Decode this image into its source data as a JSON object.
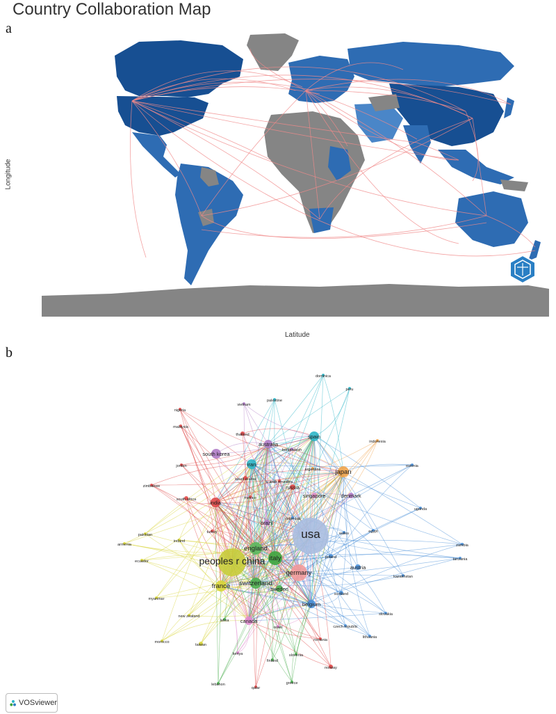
{
  "title": "Country Collaboration Map",
  "panels": {
    "a": "a",
    "b": "b"
  },
  "axes": {
    "x": "Longitude",
    "y": "Latitude"
  },
  "colors": {
    "ocean": "#ffffff",
    "land_nodata": "#858585",
    "land_low": "#4a86c8",
    "land_mid": "#2e6cb3",
    "land_high": "#174f92",
    "link": "#f08a8a"
  },
  "logo": {
    "text": "VOSviewer"
  },
  "nodes": [
    {
      "label": "usa",
      "color": "#a9bde0",
      "size": 26
    },
    {
      "label": "peoples r china",
      "color": "#c8cc3a",
      "size": 20
    },
    {
      "label": "germany",
      "color": "#f29a9a",
      "size": 12
    },
    {
      "label": "italy",
      "color": "#3fa63f",
      "size": 10
    },
    {
      "label": "england",
      "color": "#5cb85c",
      "size": 9
    },
    {
      "label": "switzerland",
      "color": "#4caf50",
      "size": 8
    },
    {
      "label": "france",
      "color": "#d8d63a",
      "size": 8
    },
    {
      "label": "japan",
      "color": "#f0a34a",
      "size": 8
    },
    {
      "label": "spain",
      "color": "#2db6c8",
      "size": 7
    },
    {
      "label": "india",
      "color": "#e04848",
      "size": 7
    },
    {
      "label": "south korea",
      "color": "#b07cc6",
      "size": 7
    },
    {
      "label": "iran",
      "color": "#2db6c8",
      "size": 7
    },
    {
      "label": "australia",
      "color": "#b07cc6",
      "size": 6
    },
    {
      "label": "canada",
      "color": "#e08cd0",
      "size": 6
    },
    {
      "label": "belgium",
      "color": "#4a90d9",
      "size": 6
    },
    {
      "label": "sweden",
      "color": "#4caf50",
      "size": 5
    },
    {
      "label": "brazil",
      "color": "#b07cc6",
      "size": 4
    },
    {
      "label": "singapore",
      "color": "#e090c8",
      "size": 4
    },
    {
      "label": "denmark",
      "color": "#b07cc6",
      "size": 4
    },
    {
      "label": "austria",
      "color": "#4a90d9",
      "size": 4
    },
    {
      "label": "poland",
      "color": "#4a90d9",
      "size": 3
    },
    {
      "label": "russia",
      "color": "#e04848",
      "size": 4
    },
    {
      "label": "thailand",
      "color": "#e04848",
      "size": 3
    },
    {
      "label": "saudi arabia",
      "color": "#e04848",
      "size": 3
    },
    {
      "label": "south africa",
      "color": "#e04848",
      "size": 3
    },
    {
      "label": "taiwan",
      "color": "#d8d63a",
      "size": 3
    },
    {
      "label": "scotland",
      "color": "#4a90d9",
      "size": 3
    },
    {
      "label": "norway",
      "color": "#e04848",
      "size": 3
    },
    {
      "label": "argentina",
      "color": "#f0a34a",
      "size": 2
    },
    {
      "label": "bangladesh",
      "color": "#b07cc6",
      "size": 2
    },
    {
      "label": "u arab emirates",
      "color": "#e04848",
      "size": 2
    },
    {
      "label": "mexico",
      "color": "#e04848",
      "size": 2
    },
    {
      "label": "colombia",
      "color": "#4a90d9",
      "size": 2
    },
    {
      "label": "wales",
      "color": "#4a90d9",
      "size": 2
    },
    {
      "label": "egypt",
      "color": "#4a90d9",
      "size": 2
    },
    {
      "label": "turkey",
      "color": "#e04848",
      "size": 2
    },
    {
      "label": "ireland",
      "color": "#d8d63a",
      "size": 2
    },
    {
      "label": "pakistan",
      "color": "#d8d63a",
      "size": 2
    },
    {
      "label": "armenia",
      "color": "#d8d63a",
      "size": 2
    },
    {
      "label": "ecuador",
      "color": "#d8d63a",
      "size": 2
    },
    {
      "label": "myanmar",
      "color": "#d8d63a",
      "size": 2
    },
    {
      "label": "new zealand",
      "color": "#d8d63a",
      "size": 2
    },
    {
      "label": "morocco",
      "color": "#d8d63a",
      "size": 2
    },
    {
      "label": "latvia",
      "color": "#4caf50",
      "size": 2
    },
    {
      "label": "israel",
      "color": "#e08cd0",
      "size": 2
    },
    {
      "label": "kenya",
      "color": "#e08cd0",
      "size": 2
    },
    {
      "label": "finland",
      "color": "#4caf50",
      "size": 2
    },
    {
      "label": "slovenia",
      "color": "#4caf50",
      "size": 2
    },
    {
      "label": "romania",
      "color": "#e04848",
      "size": 2
    },
    {
      "label": "czech republic",
      "color": "#4a90d9",
      "size": 2
    },
    {
      "label": "lithuania",
      "color": "#4a90d9",
      "size": 2
    },
    {
      "label": "slovakia",
      "color": "#4a90d9",
      "size": 2
    },
    {
      "label": "kazakhstan",
      "color": "#4a90d9",
      "size": 2
    },
    {
      "label": "zambia",
      "color": "#4a90d9",
      "size": 2
    },
    {
      "label": "tanzania",
      "color": "#4a90d9",
      "size": 2
    },
    {
      "label": "uganda",
      "color": "#4a90d9",
      "size": 2
    },
    {
      "label": "estonia",
      "color": "#4a90d9",
      "size": 2
    },
    {
      "label": "indonesia",
      "color": "#f0a34a",
      "size": 2
    },
    {
      "label": "peru",
      "color": "#2db6c8",
      "size": 2
    },
    {
      "label": "dominica",
      "color": "#2db6c8",
      "size": 2
    },
    {
      "label": "palestine",
      "color": "#2db6c8",
      "size": 2
    },
    {
      "label": "vietnam",
      "color": "#b07cc6",
      "size": 2
    },
    {
      "label": "nigeria",
      "color": "#e04848",
      "size": 2
    },
    {
      "label": "malaysia",
      "color": "#e04848",
      "size": 2
    },
    {
      "label": "jordan",
      "color": "#e04848",
      "size": 2
    },
    {
      "label": "zimbabwe",
      "color": "#e04848",
      "size": 2
    },
    {
      "label": "lebanon",
      "color": "#4caf50",
      "size": 2
    },
    {
      "label": "qatar",
      "color": "#e04848",
      "size": 2
    },
    {
      "label": "greece",
      "color": "#4caf50",
      "size": 2
    }
  ]
}
